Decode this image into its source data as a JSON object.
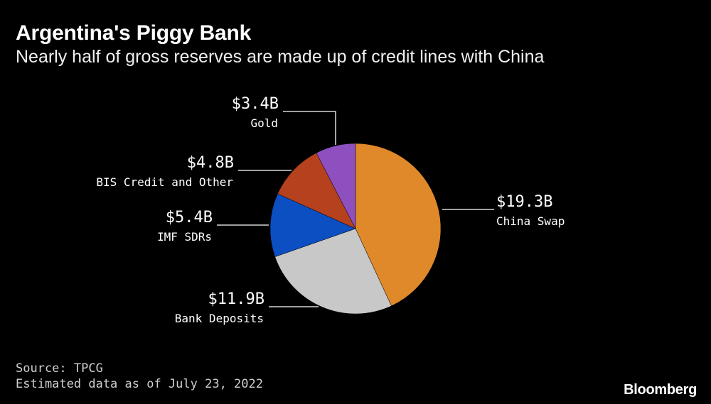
{
  "header": {
    "title": "Argentina's Piggy Bank",
    "subtitle": "Nearly half of gross reserves are made up of credit lines with China"
  },
  "footer": {
    "source": "Source: TPCG",
    "note": "Estimated data as of July 23, 2022",
    "brand": "Bloomberg"
  },
  "chart_data": {
    "type": "pie",
    "title": "Argentina's Piggy Bank",
    "subtitle": "Nearly half of gross reserves are made up of credit lines with China",
    "unit": "billion USD",
    "start_angle_deg": 0,
    "direction": "clockwise",
    "legend": "none",
    "slices": [
      {
        "label": "China Swap",
        "value": 19.3,
        "value_label": "$19.3B",
        "color": "#E0892A"
      },
      {
        "label": "Bank Deposits",
        "value": 11.9,
        "value_label": "$11.9B",
        "color": "#C8C8C8"
      },
      {
        "label": "IMF SDRs",
        "value": 5.4,
        "value_label": "$5.4B",
        "color": "#0B4FC2"
      },
      {
        "label": "BIS Credit and Other",
        "value": 4.8,
        "value_label": "$4.8B",
        "color": "#B5411F"
      },
      {
        "label": "Gold",
        "value": 3.4,
        "value_label": "$3.4B",
        "color": "#8E4FBF"
      }
    ]
  }
}
